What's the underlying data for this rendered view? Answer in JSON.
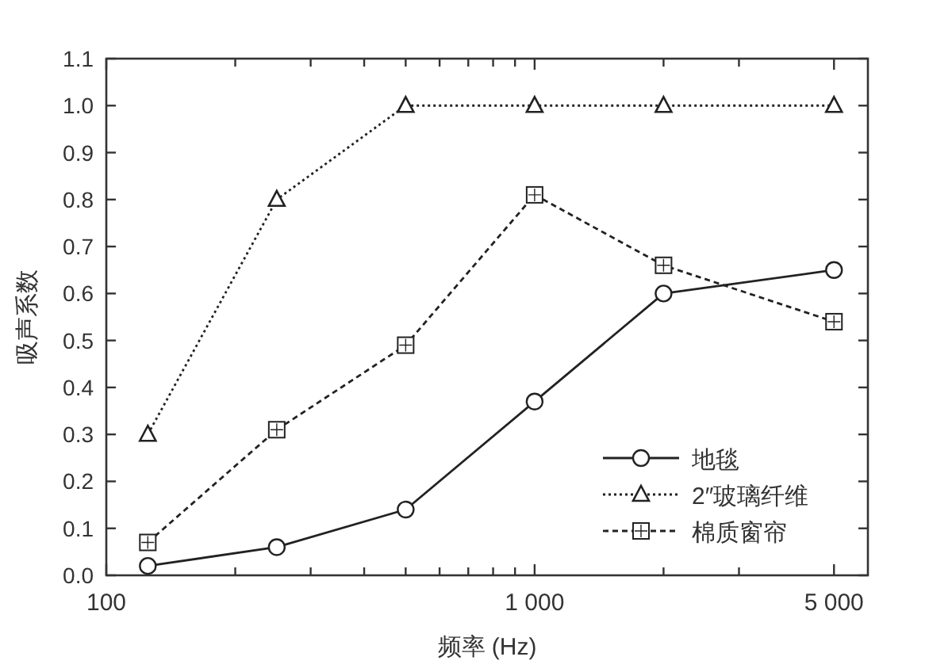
{
  "chart_data": {
    "type": "line",
    "xlabel": "频率 (Hz)",
    "ylabel": "吸声系数",
    "log": "x",
    "x": [
      125,
      250,
      500,
      1000,
      2000,
      5000
    ],
    "xlim": [
      100,
      6000
    ],
    "xticks": [
      100,
      {
        "value": 200,
        "label": null
      },
      {
        "value": 300,
        "label": null
      },
      {
        "value": 400,
        "label": null
      },
      {
        "value": 500,
        "label": null
      },
      {
        "value": 600,
        "label": null
      },
      {
        "value": 700,
        "label": null
      },
      {
        "value": 800,
        "label": null
      },
      {
        "value": 900,
        "label": null
      },
      {
        "value": 1000,
        "label": "1 000"
      },
      {
        "value": 2000,
        "label": null
      },
      {
        "value": 3000,
        "label": null
      },
      {
        "value": 5000,
        "label": "5 000"
      }
    ],
    "ylim": [
      0,
      1.1
    ],
    "yticks": [
      {
        "value": 0,
        "label": "0.0"
      },
      {
        "value": 0.1,
        "label": "0.1"
      },
      {
        "value": 0.2,
        "label": "0.2"
      },
      {
        "value": 0.3,
        "label": "0.3"
      },
      {
        "value": 0.4,
        "label": "0.4"
      },
      {
        "value": 0.5,
        "label": "0.5"
      },
      {
        "value": 0.6,
        "label": "0.6"
      },
      {
        "value": 0.7,
        "label": "0.7"
      },
      {
        "value": 0.8,
        "label": "0.8"
      },
      {
        "value": 0.9,
        "label": "0.9"
      },
      {
        "value": 1.0,
        "label": "1.0"
      },
      {
        "value": 1.1,
        "label": "1.1"
      }
    ],
    "grid": false,
    "legend": "bottom right",
    "series": [
      {
        "name": "地毯",
        "color": "#222222",
        "marker": "circle",
        "line_style": "solid",
        "values": [
          0.02,
          0.06,
          0.14,
          0.37,
          0.6,
          0.65
        ]
      },
      {
        "name": "2″玻璃纤维",
        "color": "#222222",
        "marker": "triangle",
        "line_style": "dotted",
        "values": [
          0.3,
          0.8,
          1.0,
          1.0,
          1.0,
          1.0
        ]
      },
      {
        "name": "棉质窗帘",
        "color": "#222222",
        "marker": "square",
        "line_style": "dashed",
        "values": [
          0.07,
          0.31,
          0.49,
          0.81,
          0.66,
          0.54
        ]
      }
    ]
  }
}
